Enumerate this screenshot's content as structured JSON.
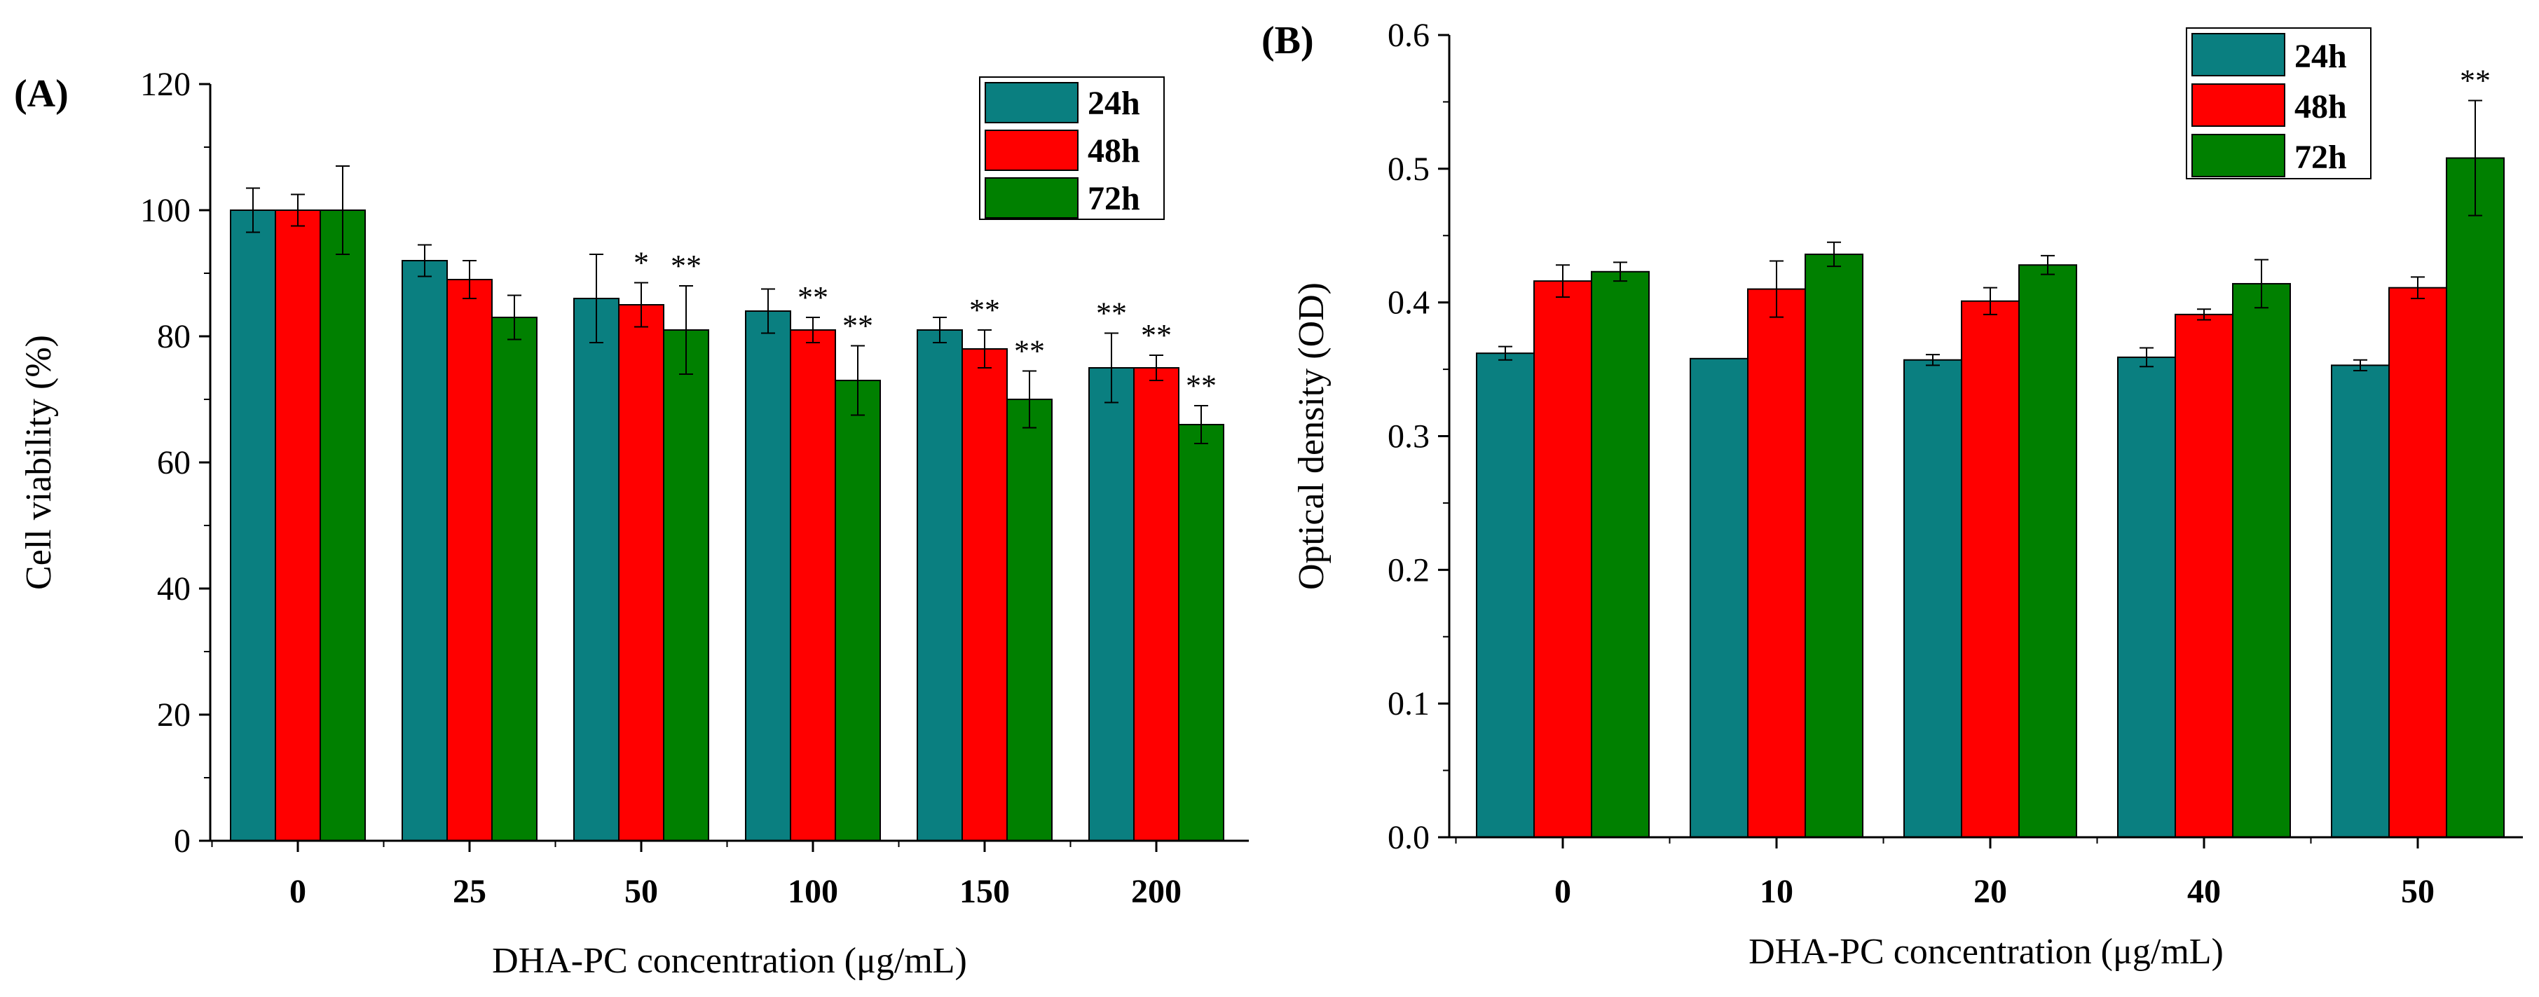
{
  "chart_data": [
    {
      "panel": "(A)",
      "type": "bar",
      "categories": [
        "0",
        "25",
        "50",
        "100",
        "150",
        "200"
      ],
      "xlabel": "DHA-PC concentration (μg/mL)",
      "ylabel": "Cell viability (%)",
      "ylim": [
        0,
        120
      ],
      "yticks": [
        "0",
        "20",
        "40",
        "60",
        "80",
        "100",
        "120"
      ],
      "legend_position": "top-right",
      "series": [
        {
          "name": "24h",
          "color": "#0a7f80",
          "values": [
            100,
            92,
            86,
            84,
            81,
            75
          ],
          "errors": [
            3.5,
            2.5,
            7,
            3.5,
            2,
            5.5
          ],
          "sig": [
            "",
            "",
            "",
            "",
            "",
            "**"
          ]
        },
        {
          "name": "48h",
          "color": "#ff0000",
          "values": [
            100,
            89,
            85,
            81,
            78,
            75
          ],
          "errors": [
            2.5,
            3,
            3.5,
            2,
            3,
            2
          ],
          "sig": [
            "",
            "",
            "*",
            "**",
            "**",
            "**"
          ]
        },
        {
          "name": "72h",
          "color": "#008000",
          "values": [
            100,
            83,
            81,
            73,
            70,
            66
          ],
          "errors": [
            7,
            3.5,
            7,
            5.5,
            4.5,
            3
          ],
          "sig": [
            "",
            "",
            "**",
            "**",
            "**",
            "**"
          ]
        }
      ]
    },
    {
      "panel": "(B)",
      "type": "bar",
      "categories": [
        "0",
        "10",
        "20",
        "40",
        "50"
      ],
      "xlabel": "DHA-PC concentration (μg/mL)",
      "ylabel": "Optical density (OD)",
      "ylim": [
        0,
        0.6
      ],
      "yticks": [
        "0.0",
        "0.1",
        "0.2",
        "0.3",
        "0.4",
        "0.5",
        "0.6"
      ],
      "legend_position": "top-right",
      "series": [
        {
          "name": "24h",
          "color": "#0a7f80",
          "values": [
            0.362,
            0.358,
            0.357,
            0.359,
            0.353
          ],
          "errors": [
            0.005,
            0,
            0.004,
            0.007,
            0.004
          ],
          "sig": [
            "",
            "",
            "",
            "",
            ""
          ]
        },
        {
          "name": "48h",
          "color": "#ff0000",
          "values": [
            0.416,
            0.41,
            0.401,
            0.391,
            0.411
          ],
          "errors": [
            0.012,
            0.021,
            0.01,
            0.004,
            0.008
          ],
          "sig": [
            "",
            "",
            "",
            "",
            ""
          ]
        },
        {
          "name": "72h",
          "color": "#008000",
          "values": [
            0.423,
            0.436,
            0.428,
            0.414,
            0.508
          ],
          "errors": [
            0.007,
            0.009,
            0.007,
            0.018,
            0.043
          ],
          "sig": [
            "",
            "",
            "",
            "",
            "**"
          ]
        }
      ]
    }
  ]
}
